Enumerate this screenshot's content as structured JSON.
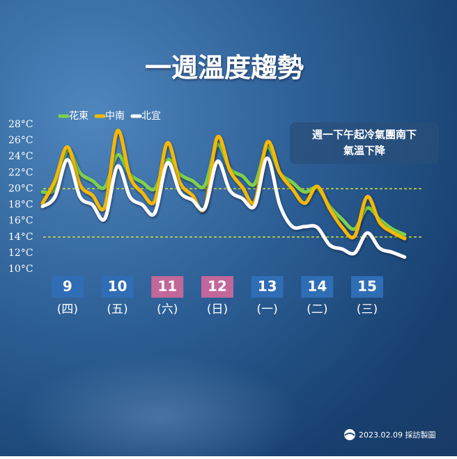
{
  "chart_data": {
    "type": "line",
    "title": "一週溫度趨勢",
    "annotation": [
      "週一下午起冷氣團南下",
      "氣溫下降"
    ],
    "footer": "2023.02.09 採訪製圖",
    "x": [
      8.5,
      8.75,
      9,
      9.25,
      9.5,
      9.75,
      10,
      10.25,
      10.5,
      10.75,
      11,
      11.25,
      11.5,
      11.75,
      12,
      12.25,
      12.5,
      12.75,
      13,
      13.25,
      13.5,
      13.75,
      14,
      14.25,
      14.5,
      14.75,
      15,
      15.25,
      15.5,
      15.75
    ],
    "series": [
      {
        "name": "花東",
        "color": "#7ed04b",
        "values": [
          19.6,
          20,
          24.8,
          22.0,
          21.0,
          20.2,
          24.2,
          21.8,
          20.8,
          20.0,
          23.6,
          21.8,
          21.0,
          20.4,
          25.5,
          22.5,
          21.6,
          20.6,
          25.2,
          22.0,
          20.8,
          19.6,
          20.1,
          17.8,
          16.2,
          15.0,
          17.6,
          16.2,
          15.0,
          14.3
        ]
      },
      {
        "name": "中南",
        "color": "#f6b800",
        "values": [
          18.2,
          21,
          25.2,
          20.5,
          19.2,
          17.8,
          27.2,
          21.5,
          19.5,
          18.5,
          25.7,
          20.8,
          19.2,
          17.6,
          26.4,
          22.3,
          20.2,
          18.4,
          25.8,
          22.0,
          20.0,
          18.2,
          20.3,
          17.5,
          15.2,
          14.1,
          19.0,
          15.8,
          14.6,
          13.8
        ]
      },
      {
        "name": "北宜",
        "color": "#ffffff",
        "values": [
          17.8,
          19,
          23.6,
          19.0,
          18.0,
          16.3,
          22.8,
          19.0,
          18.0,
          17.0,
          23.2,
          19.6,
          18.6,
          17.6,
          23.4,
          19.8,
          18.8,
          17.9,
          23.8,
          18.0,
          15.3,
          15.3,
          15.2,
          13.0,
          12.5,
          12.0,
          14.5,
          12.6,
          12.1,
          11.5
        ]
      }
    ],
    "xlim": [
      8.5,
      15.75
    ],
    "xticks": [
      9,
      10,
      11,
      12,
      13,
      14,
      15
    ],
    "weekdays": [
      "(四)",
      "(五)",
      "(六)",
      "(日)",
      "(一)",
      "(二)",
      "(三)"
    ],
    "xtick_colors": [
      "#2f6db4",
      "#2f6db4",
      "#c2679a",
      "#c2679a",
      "#2f6db4",
      "#2f6db4",
      "#2f6db4"
    ],
    "ylim": [
      10,
      28
    ],
    "yticks": [
      {
        "value": 10,
        "label": "10°C"
      },
      {
        "value": 12,
        "label": "12°C"
      },
      {
        "value": 14,
        "label": "14°C"
      },
      {
        "value": 16,
        "label": "16°C"
      },
      {
        "value": 18,
        "label": "18°C"
      },
      {
        "value": 20,
        "label": "20°C"
      },
      {
        "value": 22,
        "label": "22°C"
      },
      {
        "value": 24,
        "label": "24°C"
      },
      {
        "value": 26,
        "label": "26°C"
      },
      {
        "value": 28,
        "label": "28°C"
      }
    ],
    "hlines": [
      20,
      14
    ],
    "hline_color": "#d8e03a",
    "grid": false
  }
}
